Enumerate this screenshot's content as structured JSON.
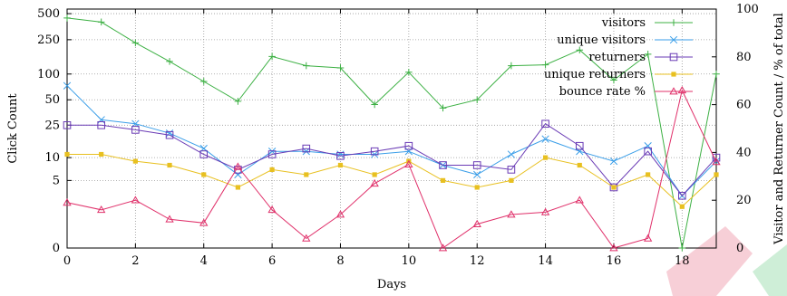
{
  "chart_data": {
    "type": "line",
    "title": "",
    "xlabel": "Days",
    "ylabel_left": "Click Count",
    "ylabel_right": "Visitor and Returner Count / % of total",
    "xlim": [
      0,
      19
    ],
    "x_ticks": [
      "0",
      "2",
      "4",
      "6",
      "8",
      "10",
      "12",
      "14",
      "16",
      "18"
    ],
    "y_left_scale": "log(1+y)",
    "y_left_ticks": [
      {
        "v": 0,
        "label": "0"
      },
      {
        "v": 5,
        "label": "5"
      },
      {
        "v": 10,
        "label": "10"
      },
      {
        "v": 25,
        "label": "25"
      },
      {
        "v": 50,
        "label": "50"
      },
      {
        "v": 100,
        "label": "100"
      },
      {
        "v": 250,
        "label": "250"
      },
      {
        "v": 500,
        "label": "500"
      }
    ],
    "y_right_ticks": [
      "0",
      "20",
      "40",
      "60",
      "80",
      "100"
    ],
    "y_right_lim": [
      0,
      100
    ],
    "grid": true,
    "legend_position": "top-right",
    "x": [
      0,
      1,
      2,
      3,
      4,
      5,
      6,
      7,
      8,
      9,
      10,
      11,
      12,
      13,
      14,
      15,
      16,
      17,
      18,
      19
    ],
    "series": [
      {
        "name": "visitors",
        "axis": "left",
        "color": "#3cb043",
        "marker": "plus",
        "values": [
          445,
          400,
          230,
          140,
          82,
          48,
          160,
          125,
          118,
          44,
          105,
          40,
          50,
          125,
          128,
          190,
          85,
          170,
          0,
          100
        ]
      },
      {
        "name": "unique visitors",
        "axis": "left",
        "color": "#3a9ee8",
        "marker": "x",
        "values": [
          73,
          29,
          26,
          20,
          13,
          6,
          12,
          12,
          11,
          11,
          12,
          8,
          6,
          11,
          17,
          12,
          9,
          14,
          3,
          9
        ]
      },
      {
        "name": "returners",
        "axis": "left",
        "color": "#6a3bb5",
        "marker": "square",
        "values": [
          25,
          25,
          22,
          19,
          11,
          7,
          11,
          13,
          10.5,
          12,
          14,
          8,
          8,
          7,
          26,
          14,
          4,
          12,
          3,
          10
        ]
      },
      {
        "name": "unique returners",
        "axis": "left",
        "color": "#e8c020",
        "marker": "square-filled",
        "values": [
          11,
          11,
          9,
          8,
          6,
          4,
          7,
          6,
          8,
          6,
          9,
          5,
          4,
          5,
          10,
          8,
          4,
          6,
          2,
          6
        ]
      },
      {
        "name": "bounce rate %",
        "axis": "right",
        "color": "#e0306a",
        "marker": "triangle",
        "values": [
          19,
          16,
          20,
          12,
          10.5,
          34,
          16,
          4,
          14,
          27,
          35,
          0,
          10,
          14,
          15,
          20,
          0,
          4,
          66,
          36
        ]
      }
    ]
  }
}
